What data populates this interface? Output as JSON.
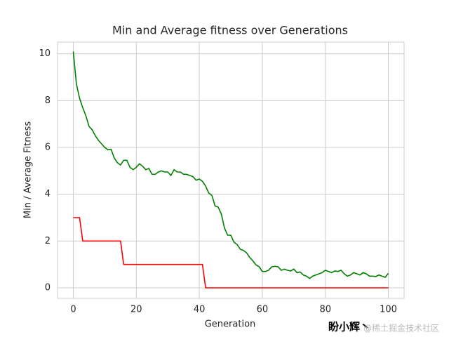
{
  "chart_data": {
    "type": "line",
    "title": "Min and Average fitness over Generations",
    "x_label": "Generation",
    "y_label": "Min / Average Fitness",
    "x": [
      0,
      1,
      2,
      3,
      4,
      5,
      6,
      7,
      8,
      9,
      10,
      11,
      12,
      13,
      14,
      15,
      16,
      17,
      18,
      19,
      20,
      21,
      22,
      23,
      24,
      25,
      26,
      27,
      28,
      29,
      30,
      31,
      32,
      33,
      34,
      35,
      36,
      37,
      38,
      39,
      40,
      41,
      42,
      43,
      44,
      45,
      46,
      47,
      48,
      49,
      50,
      51,
      52,
      53,
      54,
      55,
      56,
      57,
      58,
      59,
      60,
      61,
      62,
      63,
      64,
      65,
      66,
      67,
      68,
      69,
      70,
      71,
      72,
      73,
      74,
      75,
      76,
      77,
      78,
      79,
      80,
      81,
      82,
      83,
      84,
      85,
      86,
      87,
      88,
      89,
      90,
      91,
      92,
      93,
      94,
      95,
      96,
      97,
      98,
      99,
      100
    ],
    "series": [
      {
        "color": "#ff0000",
        "values": [
          3,
          3,
          3,
          2,
          2,
          2,
          2,
          2,
          2,
          2,
          2,
          2,
          2,
          2,
          2,
          2,
          1,
          1,
          1,
          1,
          1,
          1,
          1,
          1,
          1,
          1,
          1,
          1,
          1,
          1,
          1,
          1,
          1,
          1,
          1,
          1,
          1,
          1,
          1,
          1,
          1,
          1,
          0,
          0,
          0,
          0,
          0,
          0,
          0,
          0,
          0,
          0,
          0,
          0,
          0,
          0,
          0,
          0,
          0,
          0,
          0,
          0,
          0,
          0,
          0,
          0,
          0,
          0,
          0,
          0,
          0,
          0,
          0,
          0,
          0,
          0,
          0,
          0,
          0,
          0,
          0,
          0,
          0,
          0,
          0,
          0,
          0,
          0,
          0,
          0,
          0,
          0,
          0,
          0,
          0,
          0,
          0,
          0,
          0,
          0,
          0
        ]
      },
      {
        "color": "#008000",
        "values": [
          10.1,
          8.7,
          8.1,
          7.7,
          7.35,
          6.9,
          6.75,
          6.5,
          6.3,
          6.15,
          6.0,
          5.9,
          5.92,
          5.55,
          5.35,
          5.25,
          5.45,
          5.45,
          5.15,
          5.05,
          5.15,
          5.3,
          5.2,
          5.05,
          5.1,
          4.85,
          4.85,
          4.95,
          5.0,
          4.95,
          4.95,
          4.8,
          5.05,
          4.95,
          4.95,
          4.85,
          4.85,
          4.8,
          4.75,
          4.6,
          4.65,
          4.55,
          4.35,
          4.05,
          3.95,
          3.5,
          3.45,
          3.15,
          2.55,
          2.25,
          2.25,
          1.95,
          1.85,
          1.65,
          1.6,
          1.5,
          1.3,
          1.15,
          0.98,
          0.9,
          0.7,
          0.7,
          0.75,
          0.9,
          0.92,
          0.9,
          0.75,
          0.8,
          0.75,
          0.72,
          0.8,
          0.65,
          0.68,
          0.55,
          0.5,
          0.4,
          0.5,
          0.55,
          0.6,
          0.65,
          0.75,
          0.7,
          0.65,
          0.72,
          0.7,
          0.75,
          0.6,
          0.5,
          0.55,
          0.65,
          0.6,
          0.55,
          0.65,
          0.6,
          0.5,
          0.5,
          0.48,
          0.55,
          0.5,
          0.45,
          0.62
        ]
      }
    ],
    "xlim": [
      -5,
      105
    ],
    "ylim": [
      -0.45,
      10.5
    ],
    "xticks": [
      0,
      20,
      40,
      60,
      80,
      100
    ],
    "yticks": [
      0,
      2,
      4,
      6,
      8,
      10
    ],
    "grid": true
  },
  "watermark": [
    "盼小辉丶",
    "@稀土掘金技术社区"
  ]
}
